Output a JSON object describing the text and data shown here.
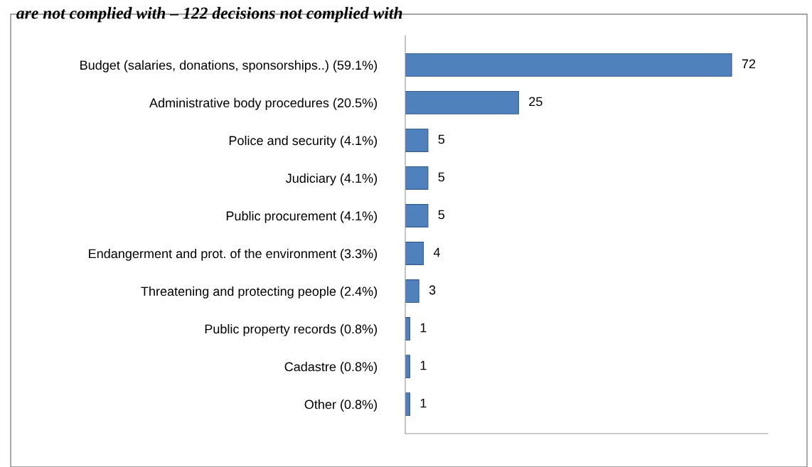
{
  "chart_data": {
    "type": "bar",
    "orientation": "horizontal",
    "title": "are not complied with – 122 decisions not complied with",
    "categories": [
      "Budget (salaries, donations, sponsorships..) (59.1%)",
      "Administrative body procedures (20.5%)",
      "Police and security (4.1%)",
      "Judiciary (4.1%)",
      "Public procurement (4.1%)",
      "Endangerment and prot. of the environment (3.3%)",
      "Threatening and protecting people (2.4%)",
      "Public property records (0.8%)",
      "Cadastre (0.8%)",
      "Other (0.8%)"
    ],
    "values": [
      72,
      25,
      5,
      5,
      5,
      4,
      3,
      1,
      1,
      1
    ],
    "color": "#4f81bd",
    "data_labels": true,
    "xlim": [
      0,
      80
    ],
    "grid": false,
    "legend": false
  }
}
